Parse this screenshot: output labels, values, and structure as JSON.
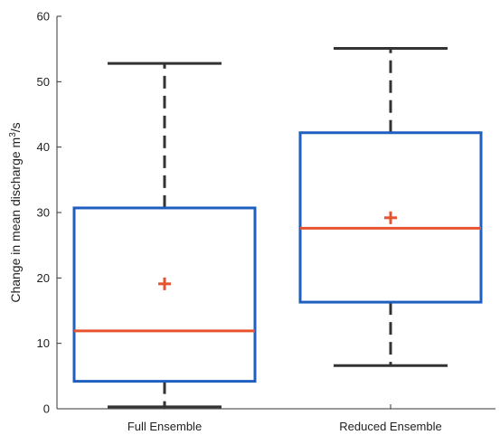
{
  "chart_data": {
    "type": "box",
    "ylabel_text": "Change in mean discharge m",
    "ylabel_sup": "3",
    "ylabel_tail": "/s",
    "ylim": [
      0,
      60
    ],
    "yticks": [
      0,
      10,
      20,
      30,
      40,
      50,
      60
    ],
    "categories": [
      "Full Ensemble",
      "Reduced Ensemble"
    ],
    "boxes": [
      {
        "category": "Full Ensemble",
        "whisker_low": 0.3,
        "q1": 4.2,
        "median": 11.9,
        "q3": 30.7,
        "whisker_high": 52.8,
        "mean": 19.1
      },
      {
        "category": "Reduced Ensemble",
        "whisker_low": 6.6,
        "q1": 16.3,
        "median": 27.6,
        "q3": 42.2,
        "whisker_high": 55.1,
        "mean": 29.2
      }
    ],
    "colors": {
      "box": "#1f5fbf",
      "median": "#e8532f",
      "mean_marker": "#e8532f",
      "whisker": "#333333",
      "axis": "#333333"
    }
  }
}
